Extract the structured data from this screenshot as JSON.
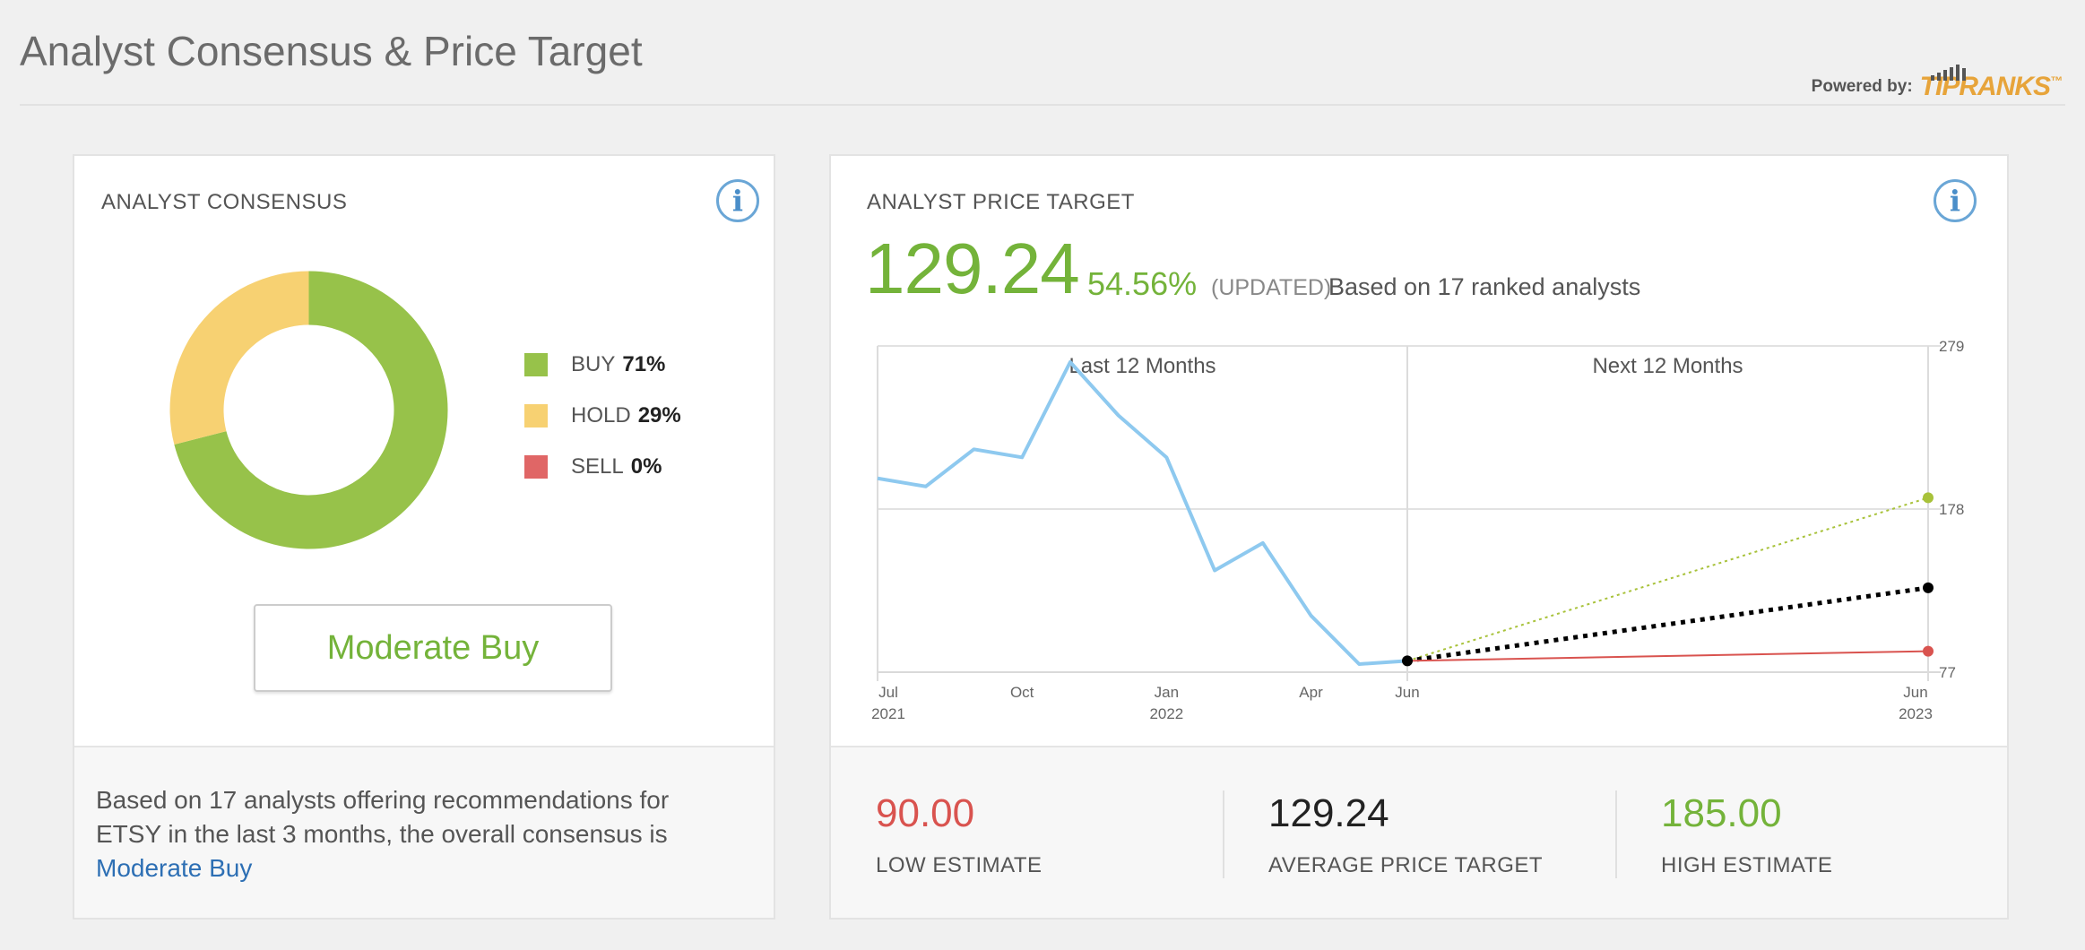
{
  "page": {
    "title": "Analyst Consensus & Price Target",
    "powered_label": "Powered by:",
    "logo_text": "TIPRANKS",
    "logo_mark": "™"
  },
  "consensus": {
    "heading": "ANALYST CONSENSUS",
    "info_icon": "i",
    "legend": [
      {
        "label": "BUY",
        "value": "71%",
        "color": "#97c24a"
      },
      {
        "label": "HOLD",
        "value": "29%",
        "color": "#f7d172"
      },
      {
        "label": "SELL",
        "value": "0%",
        "color": "#e06666"
      }
    ],
    "button_label": "Moderate Buy",
    "footer_text": "Based on 17 analysts offering recommendations for ETSY in the last 3 months, the overall consensus is",
    "footer_link": "Moderate Buy"
  },
  "price_target": {
    "heading": "ANALYST PRICE TARGET",
    "info_icon": "i",
    "value": "129.24",
    "upside": "54.56%",
    "updated": "(UPDATED)",
    "based_on": "Based on 17 ranked analysts",
    "stats": {
      "low": {
        "value": "90.00",
        "label": "LOW ESTIMATE",
        "color": "#d9534f"
      },
      "avg": {
        "value": "129.24",
        "label": "AVERAGE PRICE TARGET",
        "color": "#222222"
      },
      "high": {
        "value": "185.00",
        "label": "HIGH ESTIMATE",
        "color": "#74b33a"
      }
    }
  },
  "chart_data": [
    {
      "type": "pie",
      "categories": [
        "BUY",
        "HOLD",
        "SELL"
      ],
      "values": [
        71,
        29,
        0
      ],
      "colors": [
        "#97c24a",
        "#f7d172",
        "#e06666"
      ]
    },
    {
      "type": "line",
      "section_labels": [
        "Last 12 Months",
        "Next 12 Months"
      ],
      "x_ticks": [
        {
          "month": "Jul",
          "year": "2021"
        },
        {
          "month": "Oct",
          "year": ""
        },
        {
          "month": "Jan",
          "year": "2022"
        },
        {
          "month": "Apr",
          "year": ""
        },
        {
          "month": "Jun",
          "year": ""
        },
        {
          "month": "Jun",
          "year": "2023"
        }
      ],
      "y_ticks": [
        "279",
        "178",
        "77"
      ],
      "ylim": [
        77,
        279
      ],
      "price_history": {
        "x": [
          "2021-07",
          "2021-08",
          "2021-09",
          "2021-10",
          "2021-11",
          "2021-12",
          "2022-01",
          "2022-02",
          "2022-03",
          "2022-04",
          "2022-05",
          "2022-06"
        ],
        "y": [
          197,
          192,
          215,
          210,
          269,
          236,
          210,
          140,
          157,
          112,
          82,
          84
        ]
      },
      "projections": [
        {
          "name": "high",
          "from": 84,
          "to": 185,
          "color": "#a8c23a"
        },
        {
          "name": "average",
          "from": 84,
          "to": 129.24,
          "color": "#000000"
        },
        {
          "name": "low",
          "from": 84,
          "to": 90,
          "color": "#d9534f"
        }
      ],
      "line_color": "#8ec9ef",
      "grid": true
    }
  ]
}
